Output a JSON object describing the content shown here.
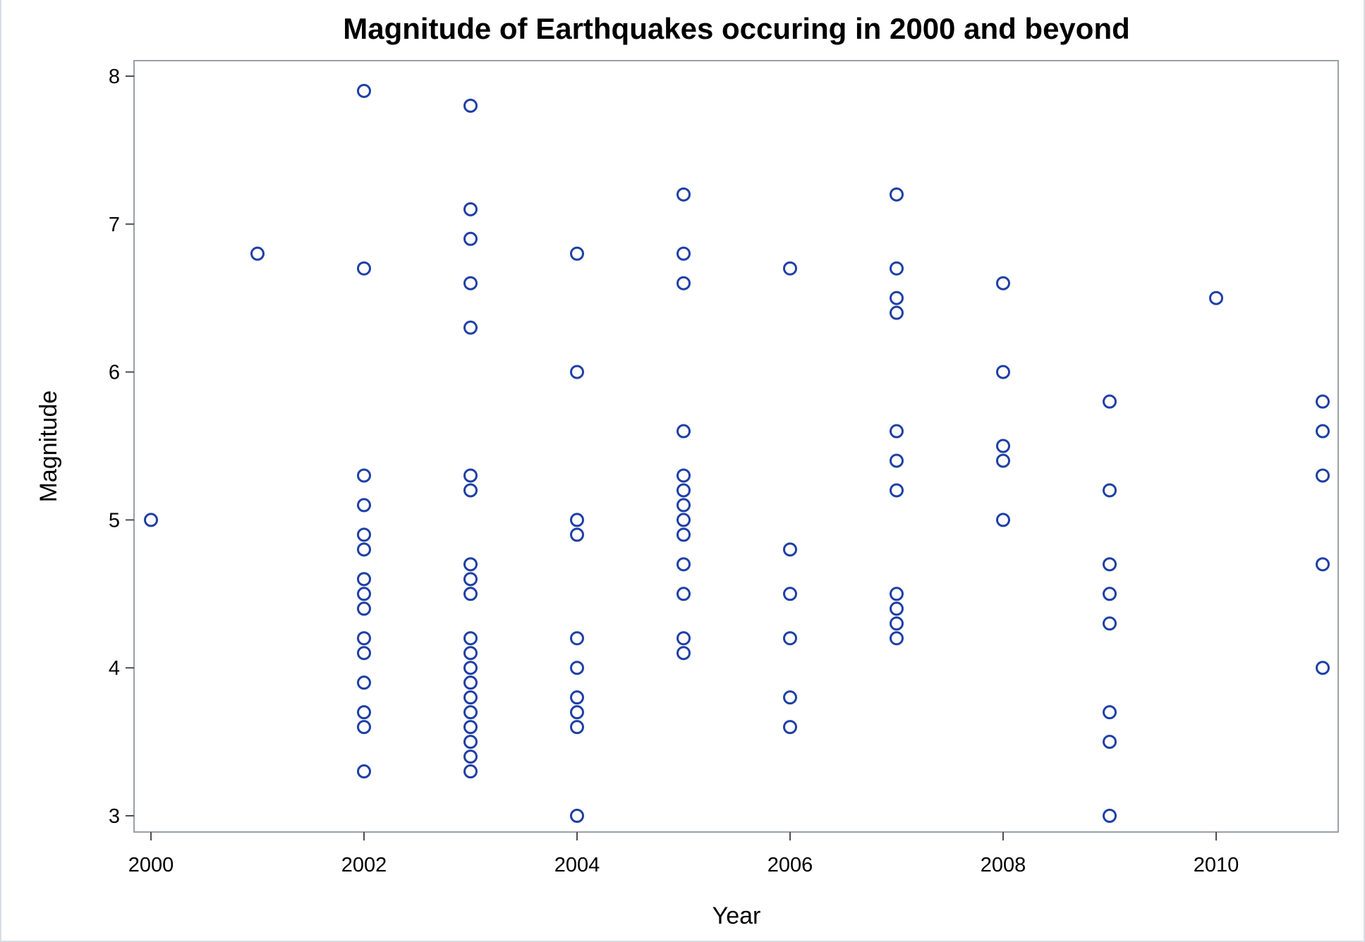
{
  "chart_data": {
    "type": "scatter",
    "title": "Magnitude of Earthquakes occuring in 2000 and beyond",
    "xlabel": "Year",
    "ylabel": "Magnitude",
    "xlim": [
      2000,
      2011
    ],
    "ylim": [
      3,
      8
    ],
    "xticks": [
      2000,
      2002,
      2004,
      2006,
      2008,
      2010
    ],
    "yticks": [
      3,
      4,
      5,
      6,
      7,
      8
    ],
    "grid": false,
    "marker": "open-circle",
    "marker_color": "#1f3fa6",
    "series": [
      {
        "name": "Magnitude",
        "points": [
          [
            2000,
            5.0
          ],
          [
            2001,
            6.8
          ],
          [
            2002,
            7.9
          ],
          [
            2002,
            6.7
          ],
          [
            2002,
            5.3
          ],
          [
            2002,
            5.1
          ],
          [
            2002,
            4.9
          ],
          [
            2002,
            4.8
          ],
          [
            2002,
            4.6
          ],
          [
            2002,
            4.5
          ],
          [
            2002,
            4.4
          ],
          [
            2002,
            4.2
          ],
          [
            2002,
            4.1
          ],
          [
            2002,
            3.9
          ],
          [
            2002,
            3.7
          ],
          [
            2002,
            3.6
          ],
          [
            2002,
            3.3
          ],
          [
            2003,
            7.8
          ],
          [
            2003,
            7.1
          ],
          [
            2003,
            6.9
          ],
          [
            2003,
            6.6
          ],
          [
            2003,
            6.3
          ],
          [
            2003,
            5.3
          ],
          [
            2003,
            5.2
          ],
          [
            2003,
            4.7
          ],
          [
            2003,
            4.6
          ],
          [
            2003,
            4.5
          ],
          [
            2003,
            4.2
          ],
          [
            2003,
            4.1
          ],
          [
            2003,
            4.0
          ],
          [
            2003,
            3.9
          ],
          [
            2003,
            3.8
          ],
          [
            2003,
            3.7
          ],
          [
            2003,
            3.6
          ],
          [
            2003,
            3.5
          ],
          [
            2003,
            3.4
          ],
          [
            2003,
            3.3
          ],
          [
            2004,
            6.8
          ],
          [
            2004,
            6.0
          ],
          [
            2004,
            5.0
          ],
          [
            2004,
            4.9
          ],
          [
            2004,
            4.2
          ],
          [
            2004,
            4.0
          ],
          [
            2004,
            3.8
          ],
          [
            2004,
            3.7
          ],
          [
            2004,
            3.6
          ],
          [
            2004,
            3.0
          ],
          [
            2005,
            7.2
          ],
          [
            2005,
            6.8
          ],
          [
            2005,
            6.6
          ],
          [
            2005,
            5.6
          ],
          [
            2005,
            5.3
          ],
          [
            2005,
            5.2
          ],
          [
            2005,
            5.1
          ],
          [
            2005,
            5.0
          ],
          [
            2005,
            4.9
          ],
          [
            2005,
            4.7
          ],
          [
            2005,
            4.5
          ],
          [
            2005,
            4.2
          ],
          [
            2005,
            4.1
          ],
          [
            2006,
            6.7
          ],
          [
            2006,
            4.8
          ],
          [
            2006,
            4.5
          ],
          [
            2006,
            4.2
          ],
          [
            2006,
            3.8
          ],
          [
            2006,
            3.6
          ],
          [
            2007,
            7.2
          ],
          [
            2007,
            6.7
          ],
          [
            2007,
            6.5
          ],
          [
            2007,
            6.4
          ],
          [
            2007,
            5.6
          ],
          [
            2007,
            5.4
          ],
          [
            2007,
            5.2
          ],
          [
            2007,
            4.5
          ],
          [
            2007,
            4.4
          ],
          [
            2007,
            4.3
          ],
          [
            2007,
            4.2
          ],
          [
            2008,
            6.6
          ],
          [
            2008,
            6.0
          ],
          [
            2008,
            5.5
          ],
          [
            2008,
            5.4
          ],
          [
            2008,
            5.0
          ],
          [
            2009,
            5.8
          ],
          [
            2009,
            5.2
          ],
          [
            2009,
            4.7
          ],
          [
            2009,
            4.5
          ],
          [
            2009,
            4.3
          ],
          [
            2009,
            3.7
          ],
          [
            2009,
            3.5
          ],
          [
            2009,
            3.0
          ],
          [
            2010,
            6.5
          ],
          [
            2011,
            5.8
          ],
          [
            2011,
            5.6
          ],
          [
            2011,
            5.3
          ],
          [
            2011,
            4.7
          ],
          [
            2011,
            4.0
          ]
        ]
      }
    ]
  }
}
